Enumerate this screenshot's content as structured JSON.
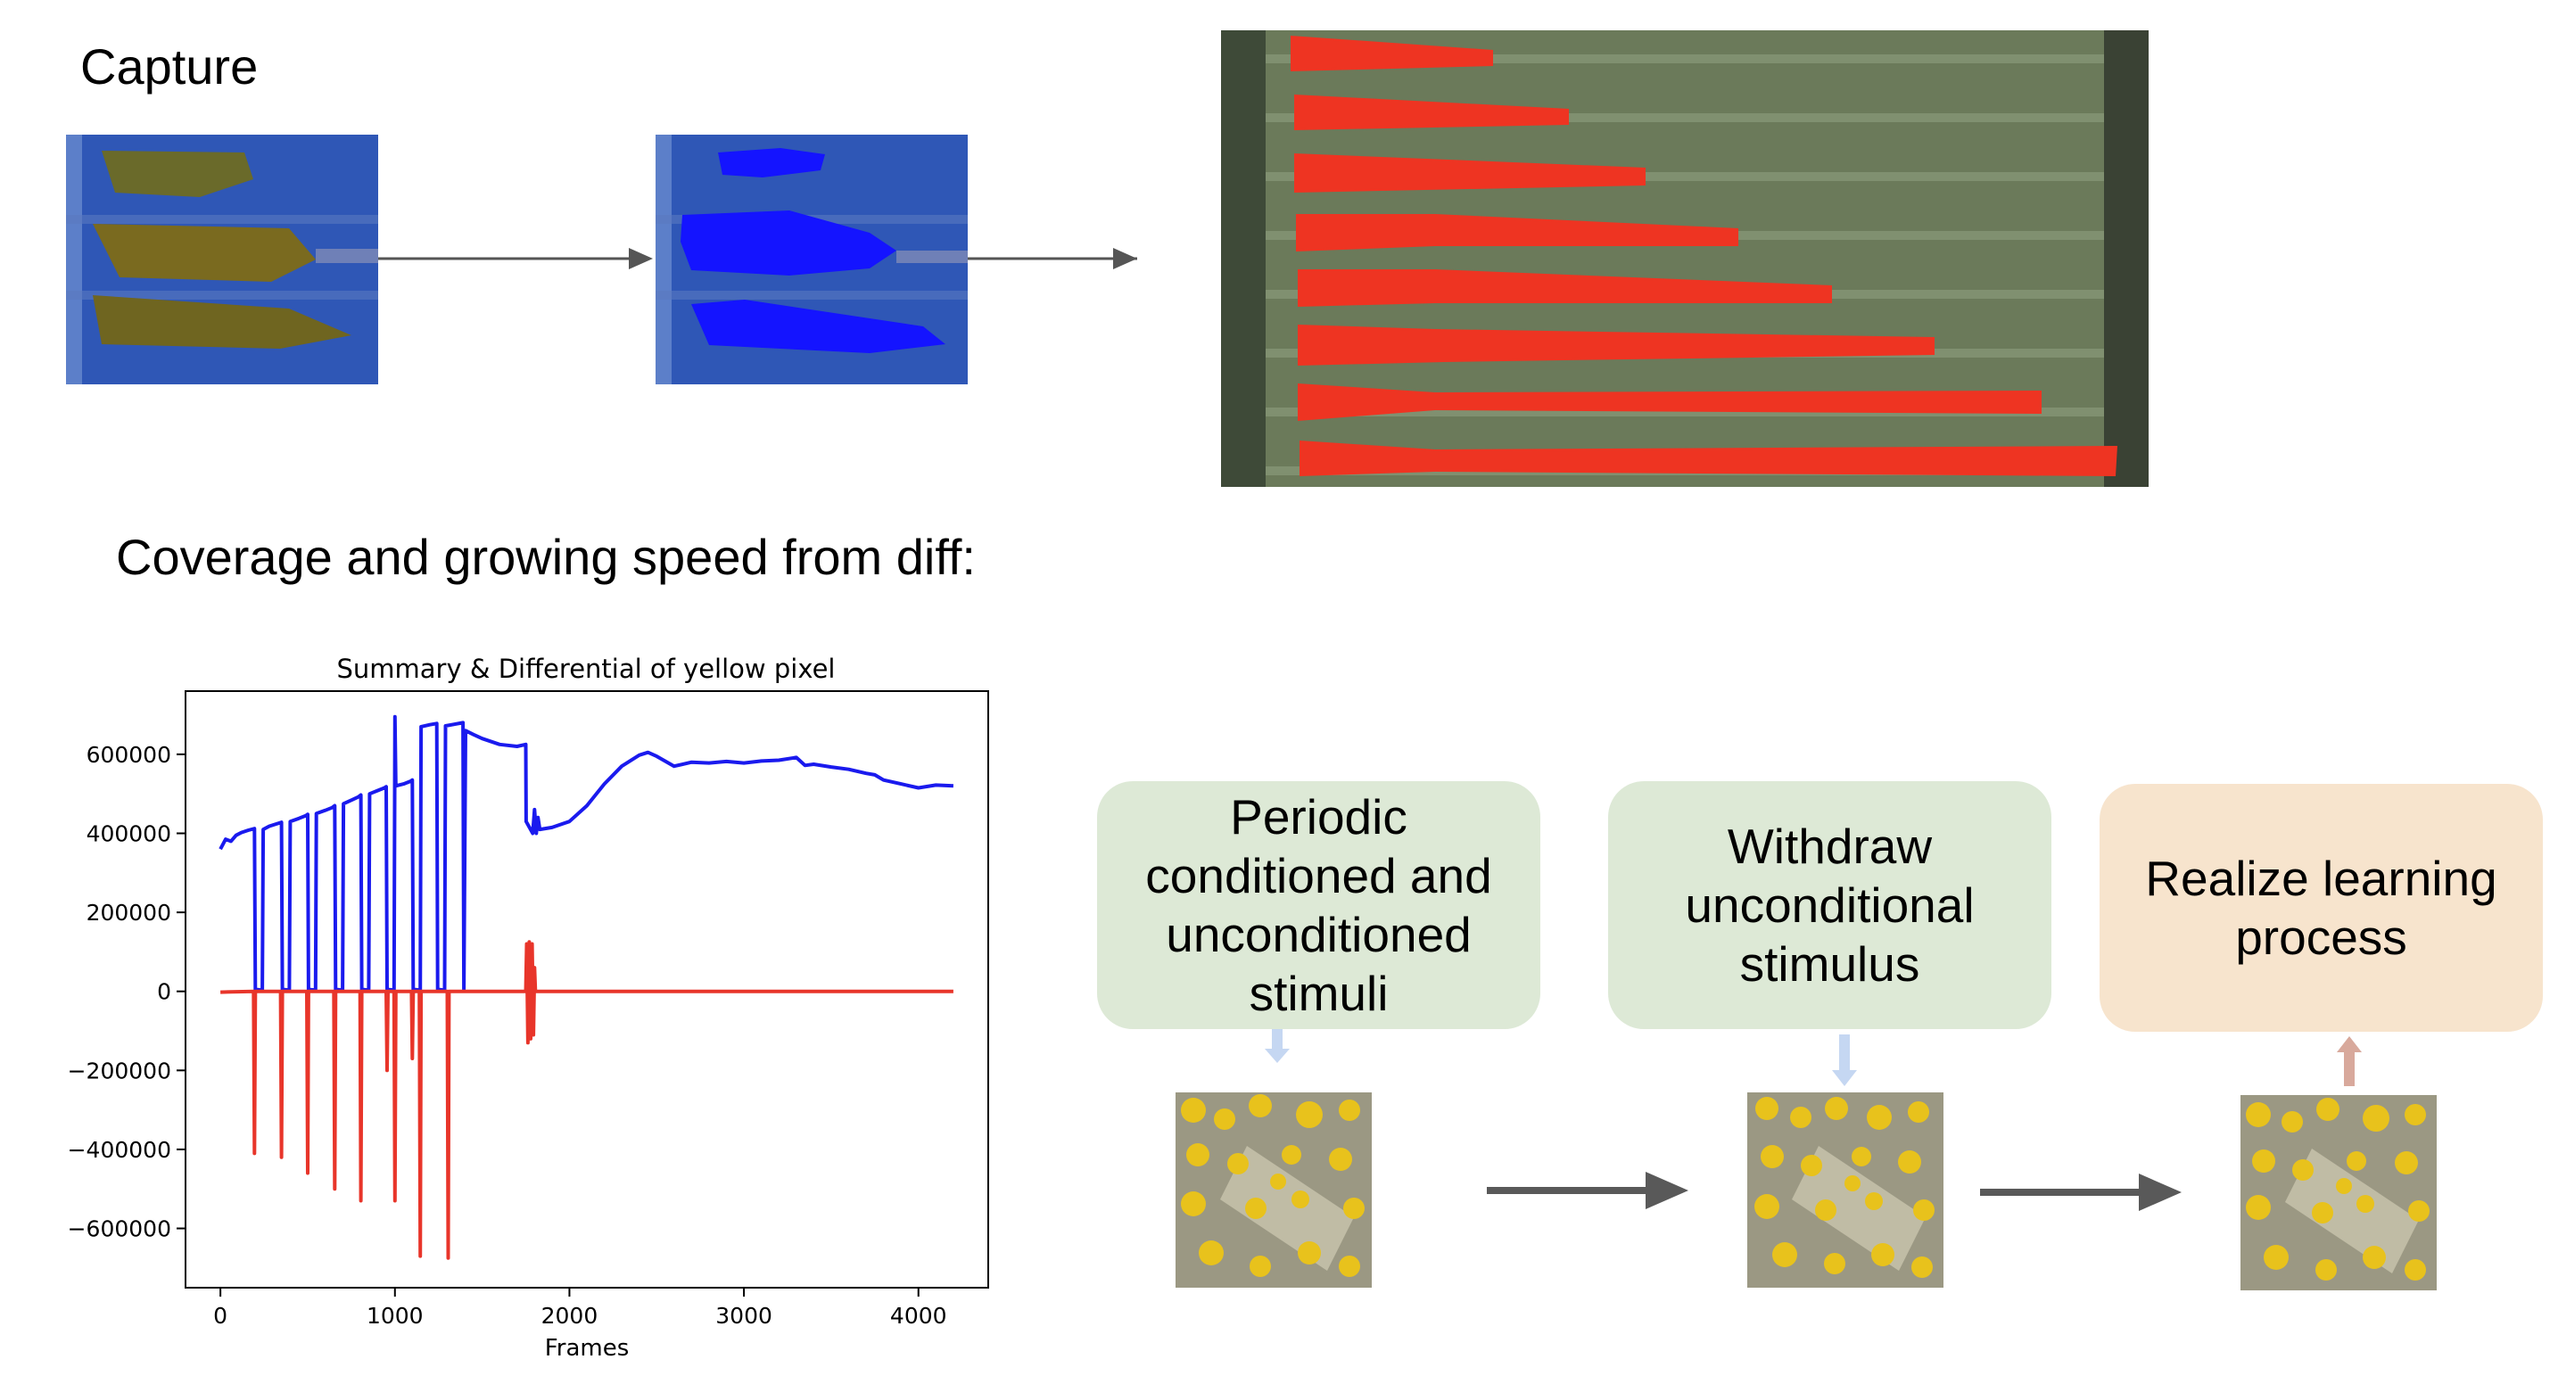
{
  "capture_heading": "Capture",
  "coverage_heading": "Coverage and growing speed from diff:",
  "steps": [
    {
      "label": "Periodic conditioned and unconditioned stimuli"
    },
    {
      "label": "Withdraw unconditional stimulus"
    },
    {
      "label": "Realize learning process"
    }
  ],
  "colors": {
    "summary_series": "#1a1aee",
    "differential_series": "#e8352a",
    "step_green": "#dde9d6",
    "step_peach": "#f7e4cd",
    "arrow_down_blue": "#c5d7f2",
    "arrow_up_brown": "#d8a99c"
  },
  "chart_data": {
    "type": "line",
    "title": "Summary & Differential of yellow pixel",
    "xlabel": "Frames",
    "ylabel": "",
    "xlim": [
      -200,
      4400
    ],
    "ylim": [
      -750000,
      760000
    ],
    "x_ticks": [
      0,
      1000,
      2000,
      3000,
      4000
    ],
    "y_ticks": [
      600000,
      400000,
      200000,
      0,
      -200000,
      -400000,
      -600000
    ],
    "y_tick_labels": [
      "600000",
      "400000",
      "200000",
      "0",
      "−200000",
      "−400000",
      "−600000"
    ],
    "grid": false,
    "series": [
      {
        "color": "#1a1aee",
        "points": [
          [
            0,
            360000
          ],
          [
            30,
            385000
          ],
          [
            60,
            380000
          ],
          [
            90,
            395000
          ],
          [
            120,
            402000
          ],
          [
            160,
            408000
          ],
          [
            195,
            412000
          ],
          [
            200,
            5000
          ],
          [
            240,
            3000
          ],
          [
            245,
            410000
          ],
          [
            280,
            418000
          ],
          [
            330,
            425000
          ],
          [
            350,
            428000
          ],
          [
            355,
            5000
          ],
          [
            395,
            3000
          ],
          [
            400,
            430000
          ],
          [
            450,
            438000
          ],
          [
            490,
            445000
          ],
          [
            500,
            448000
          ],
          [
            505,
            5000
          ],
          [
            545,
            3000
          ],
          [
            550,
            450000
          ],
          [
            600,
            458000
          ],
          [
            640,
            465000
          ],
          [
            655,
            470000
          ],
          [
            660,
            5000
          ],
          [
            700,
            3000
          ],
          [
            705,
            475000
          ],
          [
            750,
            484000
          ],
          [
            790,
            492000
          ],
          [
            805,
            497000
          ],
          [
            810,
            5000
          ],
          [
            850,
            3000
          ],
          [
            855,
            500000
          ],
          [
            900,
            508000
          ],
          [
            940,
            515000
          ],
          [
            950,
            518000
          ],
          [
            955,
            5000
          ],
          [
            995,
            3000
          ],
          [
            1000,
            695000
          ],
          [
            1005,
            520000
          ],
          [
            1050,
            525000
          ],
          [
            1090,
            532000
          ],
          [
            1100,
            535000
          ],
          [
            1105,
            5000
          ],
          [
            1145,
            3000
          ],
          [
            1150,
            670000
          ],
          [
            1200,
            675000
          ],
          [
            1240,
            678000
          ],
          [
            1245,
            5000
          ],
          [
            1285,
            3000
          ],
          [
            1290,
            672000
          ],
          [
            1340,
            676000
          ],
          [
            1390,
            680000
          ],
          [
            1395,
            5000
          ],
          [
            1405,
            660000
          ],
          [
            1450,
            650000
          ],
          [
            1500,
            640000
          ],
          [
            1600,
            625000
          ],
          [
            1700,
            620000
          ],
          [
            1750,
            625000
          ],
          [
            1752,
            430000
          ],
          [
            1790,
            400000
          ],
          [
            1800,
            460000
          ],
          [
            1810,
            400000
          ],
          [
            1820,
            440000
          ],
          [
            1830,
            410000
          ],
          [
            1900,
            415000
          ],
          [
            2000,
            430000
          ],
          [
            2100,
            470000
          ],
          [
            2200,
            525000
          ],
          [
            2300,
            570000
          ],
          [
            2400,
            598000
          ],
          [
            2450,
            605000
          ],
          [
            2500,
            595000
          ],
          [
            2600,
            570000
          ],
          [
            2700,
            580000
          ],
          [
            2800,
            578000
          ],
          [
            2900,
            582000
          ],
          [
            3000,
            578000
          ],
          [
            3100,
            583000
          ],
          [
            3200,
            585000
          ],
          [
            3300,
            592000
          ],
          [
            3350,
            572000
          ],
          [
            3400,
            575000
          ],
          [
            3500,
            568000
          ],
          [
            3600,
            562000
          ],
          [
            3700,
            552000
          ],
          [
            3750,
            548000
          ],
          [
            3800,
            535000
          ],
          [
            3900,
            525000
          ],
          [
            4000,
            515000
          ],
          [
            4100,
            522000
          ],
          [
            4200,
            520000
          ]
        ]
      },
      {
        "color": "#e8352a",
        "points": [
          [
            0,
            -2000
          ],
          [
            190,
            0
          ],
          [
            195,
            -410000
          ],
          [
            200,
            0
          ],
          [
            345,
            0
          ],
          [
            350,
            -420000
          ],
          [
            355,
            0
          ],
          [
            495,
            0
          ],
          [
            500,
            -460000
          ],
          [
            505,
            0
          ],
          [
            650,
            0
          ],
          [
            655,
            -500000
          ],
          [
            660,
            0
          ],
          [
            800,
            0
          ],
          [
            805,
            -530000
          ],
          [
            810,
            0
          ],
          [
            950,
            0
          ],
          [
            955,
            -200000
          ],
          [
            960,
            0
          ],
          [
            995,
            0
          ],
          [
            1000,
            -530000
          ],
          [
            1005,
            0
          ],
          [
            1095,
            0
          ],
          [
            1100,
            -170000
          ],
          [
            1105,
            0
          ],
          [
            1140,
            0
          ],
          [
            1145,
            -670000
          ],
          [
            1150,
            0
          ],
          [
            1300,
            0
          ],
          [
            1305,
            -675000
          ],
          [
            1310,
            0
          ],
          [
            1750,
            0
          ],
          [
            1755,
            120000
          ],
          [
            1762,
            -130000
          ],
          [
            1770,
            125000
          ],
          [
            1778,
            -120000
          ],
          [
            1786,
            120000
          ],
          [
            1794,
            -110000
          ],
          [
            1800,
            60000
          ],
          [
            1805,
            0
          ],
          [
            2500,
            0
          ],
          [
            3000,
            0
          ],
          [
            3500,
            0
          ],
          [
            4000,
            0
          ],
          [
            4200,
            0
          ]
        ]
      }
    ]
  }
}
